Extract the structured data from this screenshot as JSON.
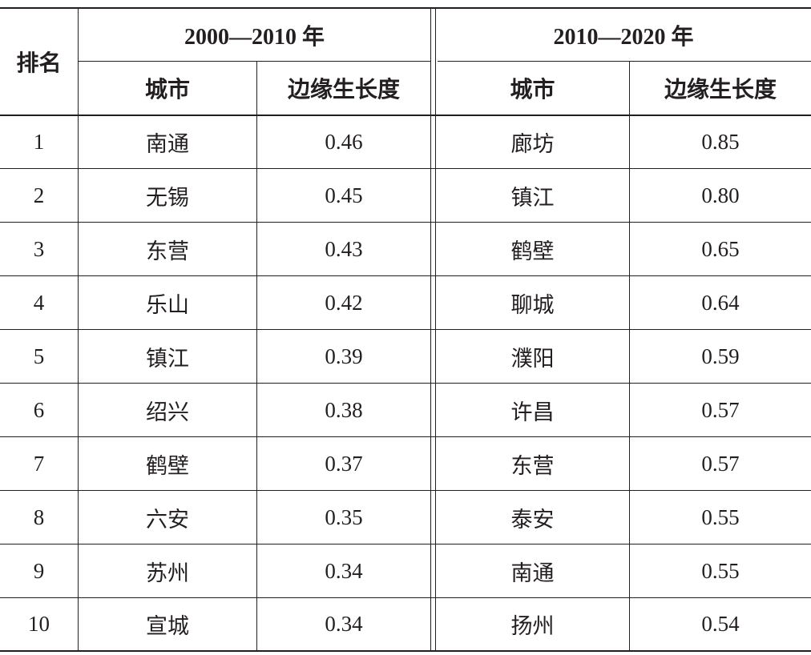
{
  "table": {
    "rank_header": "排名",
    "period1_header": "2000—2010 年",
    "period2_header": "2010—2020 年",
    "city_header": "城市",
    "edge_header": "边缘生长度",
    "rows": [
      {
        "rank": "1",
        "city1": "南通",
        "val1": "0.46",
        "city2": "廊坊",
        "val2": "0.85"
      },
      {
        "rank": "2",
        "city1": "无锡",
        "val1": "0.45",
        "city2": "镇江",
        "val2": "0.80"
      },
      {
        "rank": "3",
        "city1": "东营",
        "val1": "0.43",
        "city2": "鹤壁",
        "val2": "0.65"
      },
      {
        "rank": "4",
        "city1": "乐山",
        "val1": "0.42",
        "city2": "聊城",
        "val2": "0.64"
      },
      {
        "rank": "5",
        "city1": "镇江",
        "val1": "0.39",
        "city2": "濮阳",
        "val2": "0.59"
      },
      {
        "rank": "6",
        "city1": "绍兴",
        "val1": "0.38",
        "city2": "许昌",
        "val2": "0.57"
      },
      {
        "rank": "7",
        "city1": "鹤壁",
        "val1": "0.37",
        "city2": "东营",
        "val2": "0.57"
      },
      {
        "rank": "8",
        "city1": "六安",
        "val1": "0.35",
        "city2": "泰安",
        "val2": "0.55"
      },
      {
        "rank": "9",
        "city1": "苏州",
        "val1": "0.34",
        "city2": "南通",
        "val2": "0.55"
      },
      {
        "rank": "10",
        "city1": "宣城",
        "val1": "0.34",
        "city2": "扬州",
        "val2": "0.54"
      }
    ]
  }
}
